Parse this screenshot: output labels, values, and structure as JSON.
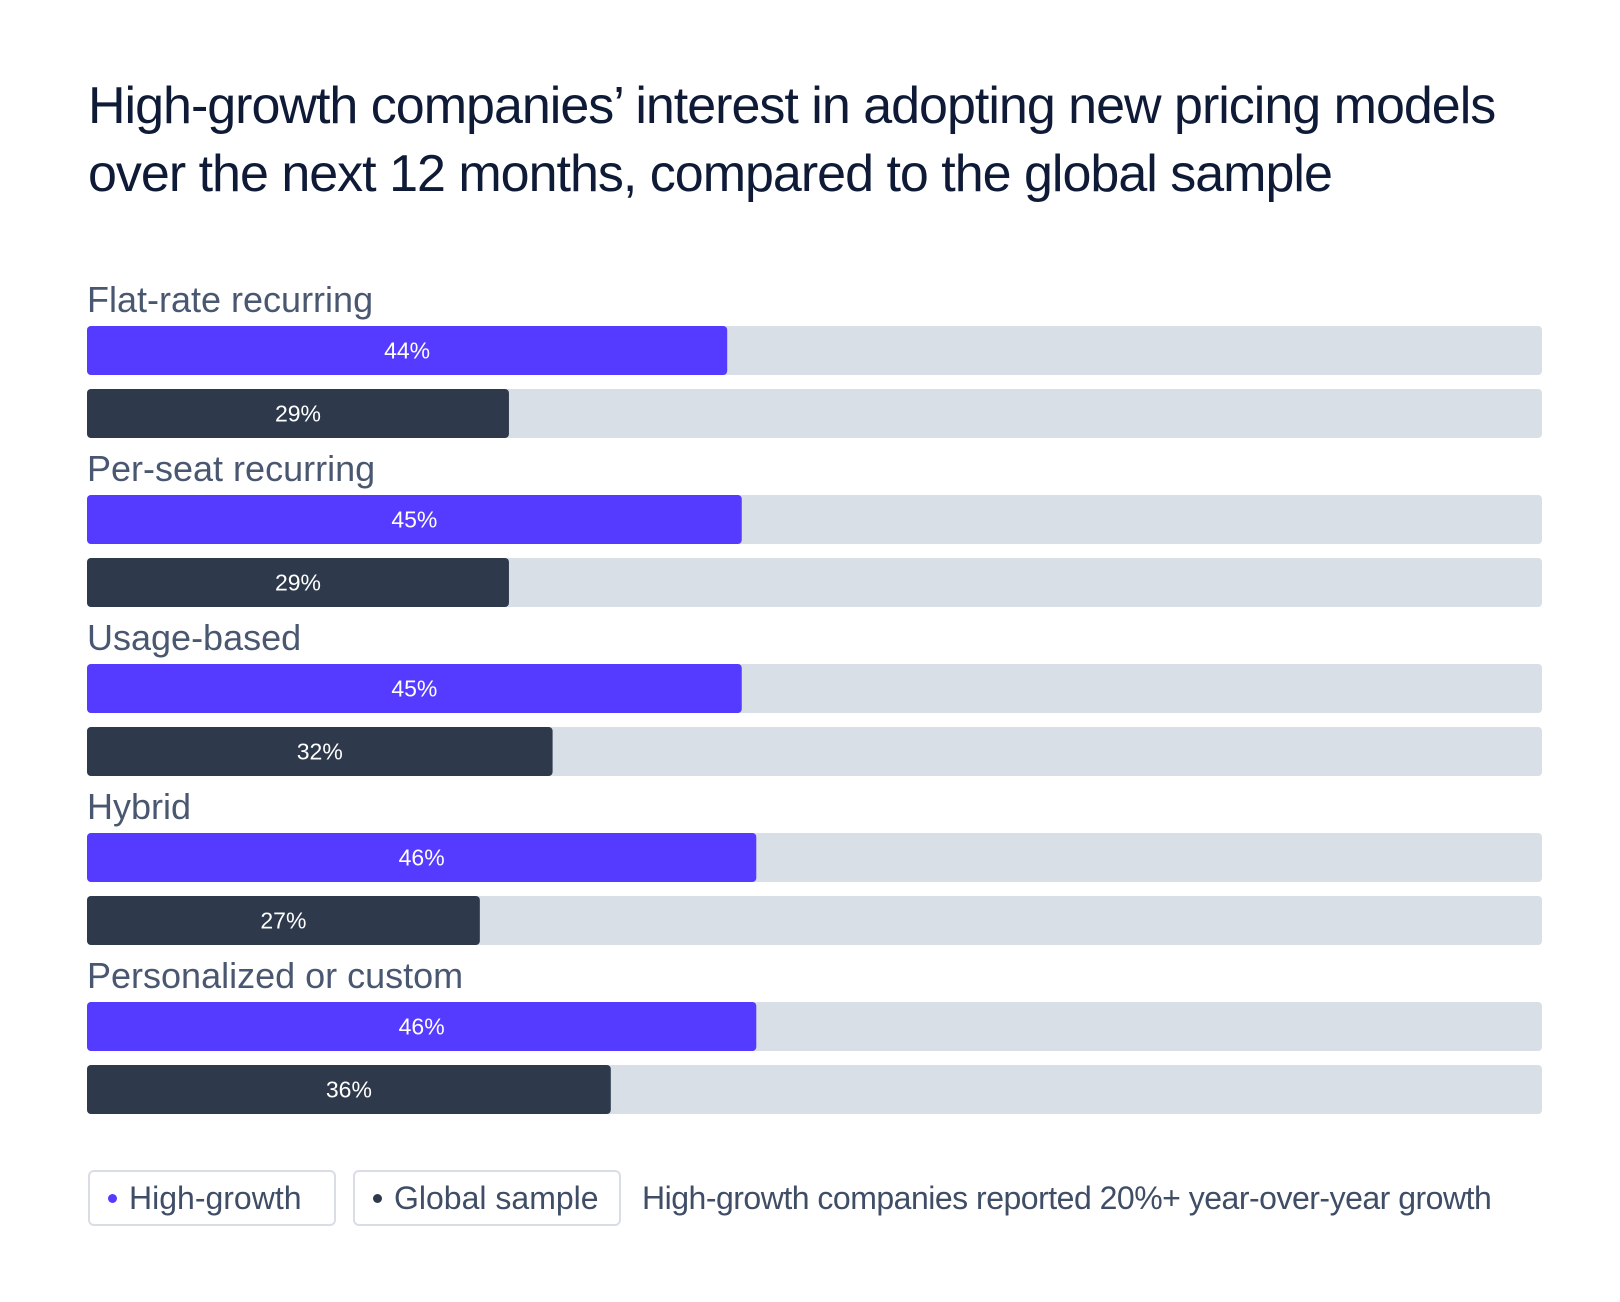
{
  "chart_data": {
    "type": "bar",
    "orientation": "horizontal",
    "title": "High-growth companies’ interest in adopting new pricing models over the next 12 months, compared to the global sample",
    "categories": [
      "Flat-rate recurring",
      "Per-seat recurring",
      "Usage-based",
      "Hybrid",
      "Personalized or custom"
    ],
    "series": [
      {
        "name": "High-growth",
        "values": [
          44,
          45,
          45,
          46,
          46
        ],
        "color": "#543bff"
      },
      {
        "name": "Global sample",
        "values": [
          29,
          29,
          32,
          27,
          36
        ],
        "color": "#2e3a4b"
      }
    ],
    "value_suffix": "%",
    "xlim": [
      0,
      100
    ],
    "track_color": "#d9dfe6",
    "label_color": "#4a5770",
    "legend_position": "bottom-left",
    "note": "High-growth companies reported 20%+ year-over-year growth"
  }
}
